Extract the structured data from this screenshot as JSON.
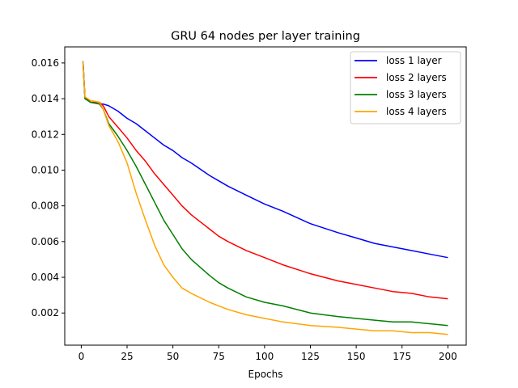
{
  "chart_data": {
    "type": "line",
    "title": "GRU 64 nodes per layer training",
    "xlabel": "Epochs",
    "ylabel": "",
    "xlim": [
      -9,
      210
    ],
    "ylim": [
      0.0002,
      0.0169
    ],
    "xticks": [
      0,
      25,
      50,
      75,
      100,
      125,
      150,
      175,
      200
    ],
    "yticks": [
      0.002,
      0.004,
      0.006,
      0.008,
      0.01,
      0.012,
      0.014,
      0.016
    ],
    "ytick_labels": [
      "0.002",
      "0.004",
      "0.006",
      "0.008",
      "0.010",
      "0.012",
      "0.014",
      "0.016"
    ],
    "grid": false,
    "legend_position": "top-right",
    "x": [
      1,
      2,
      5,
      10,
      12,
      15,
      20,
      25,
      30,
      35,
      40,
      45,
      50,
      55,
      60,
      70,
      75,
      80,
      90,
      100,
      110,
      125,
      140,
      150,
      160,
      170,
      180,
      190,
      200
    ],
    "series": [
      {
        "name": "loss 1 layer",
        "color": "#0000ff",
        "values": [
          0.0161,
          0.0141,
          0.0138,
          0.0137,
          0.0137,
          0.0136,
          0.0133,
          0.0129,
          0.0126,
          0.0122,
          0.0118,
          0.0114,
          0.0111,
          0.0107,
          0.0104,
          0.0097,
          0.0094,
          0.0091,
          0.0086,
          0.0081,
          0.0077,
          0.007,
          0.0065,
          0.0062,
          0.0059,
          0.0057,
          0.0055,
          0.0053,
          0.0051
        ]
      },
      {
        "name": "loss 2 layers",
        "color": "#ff0000",
        "values": [
          0.016,
          0.0141,
          0.0138,
          0.0138,
          0.0136,
          0.013,
          0.0124,
          0.0118,
          0.0111,
          0.0105,
          0.0098,
          0.0092,
          0.0086,
          0.008,
          0.0075,
          0.0067,
          0.0063,
          0.006,
          0.0055,
          0.0051,
          0.0047,
          0.0042,
          0.0038,
          0.0036,
          0.0034,
          0.0032,
          0.0031,
          0.0029,
          0.0028
        ]
      },
      {
        "name": "loss 3 layers",
        "color": "#008000",
        "values": [
          0.0161,
          0.014,
          0.0138,
          0.0137,
          0.0134,
          0.0126,
          0.0119,
          0.0111,
          0.0102,
          0.0092,
          0.0082,
          0.0072,
          0.0064,
          0.0056,
          0.005,
          0.0041,
          0.0037,
          0.0034,
          0.0029,
          0.0026,
          0.0024,
          0.002,
          0.0018,
          0.0017,
          0.0016,
          0.0015,
          0.0015,
          0.0014,
          0.0013
        ]
      },
      {
        "name": "loss 4 layers",
        "color": "#ffa500",
        "values": [
          0.0161,
          0.0141,
          0.0139,
          0.0138,
          0.0134,
          0.0125,
          0.0116,
          0.0104,
          0.0087,
          0.0072,
          0.0058,
          0.0047,
          0.004,
          0.0034,
          0.0031,
          0.0026,
          0.0024,
          0.0022,
          0.0019,
          0.0017,
          0.0015,
          0.0013,
          0.0012,
          0.0011,
          0.001,
          0.001,
          0.0009,
          0.0009,
          0.0008
        ]
      }
    ]
  }
}
